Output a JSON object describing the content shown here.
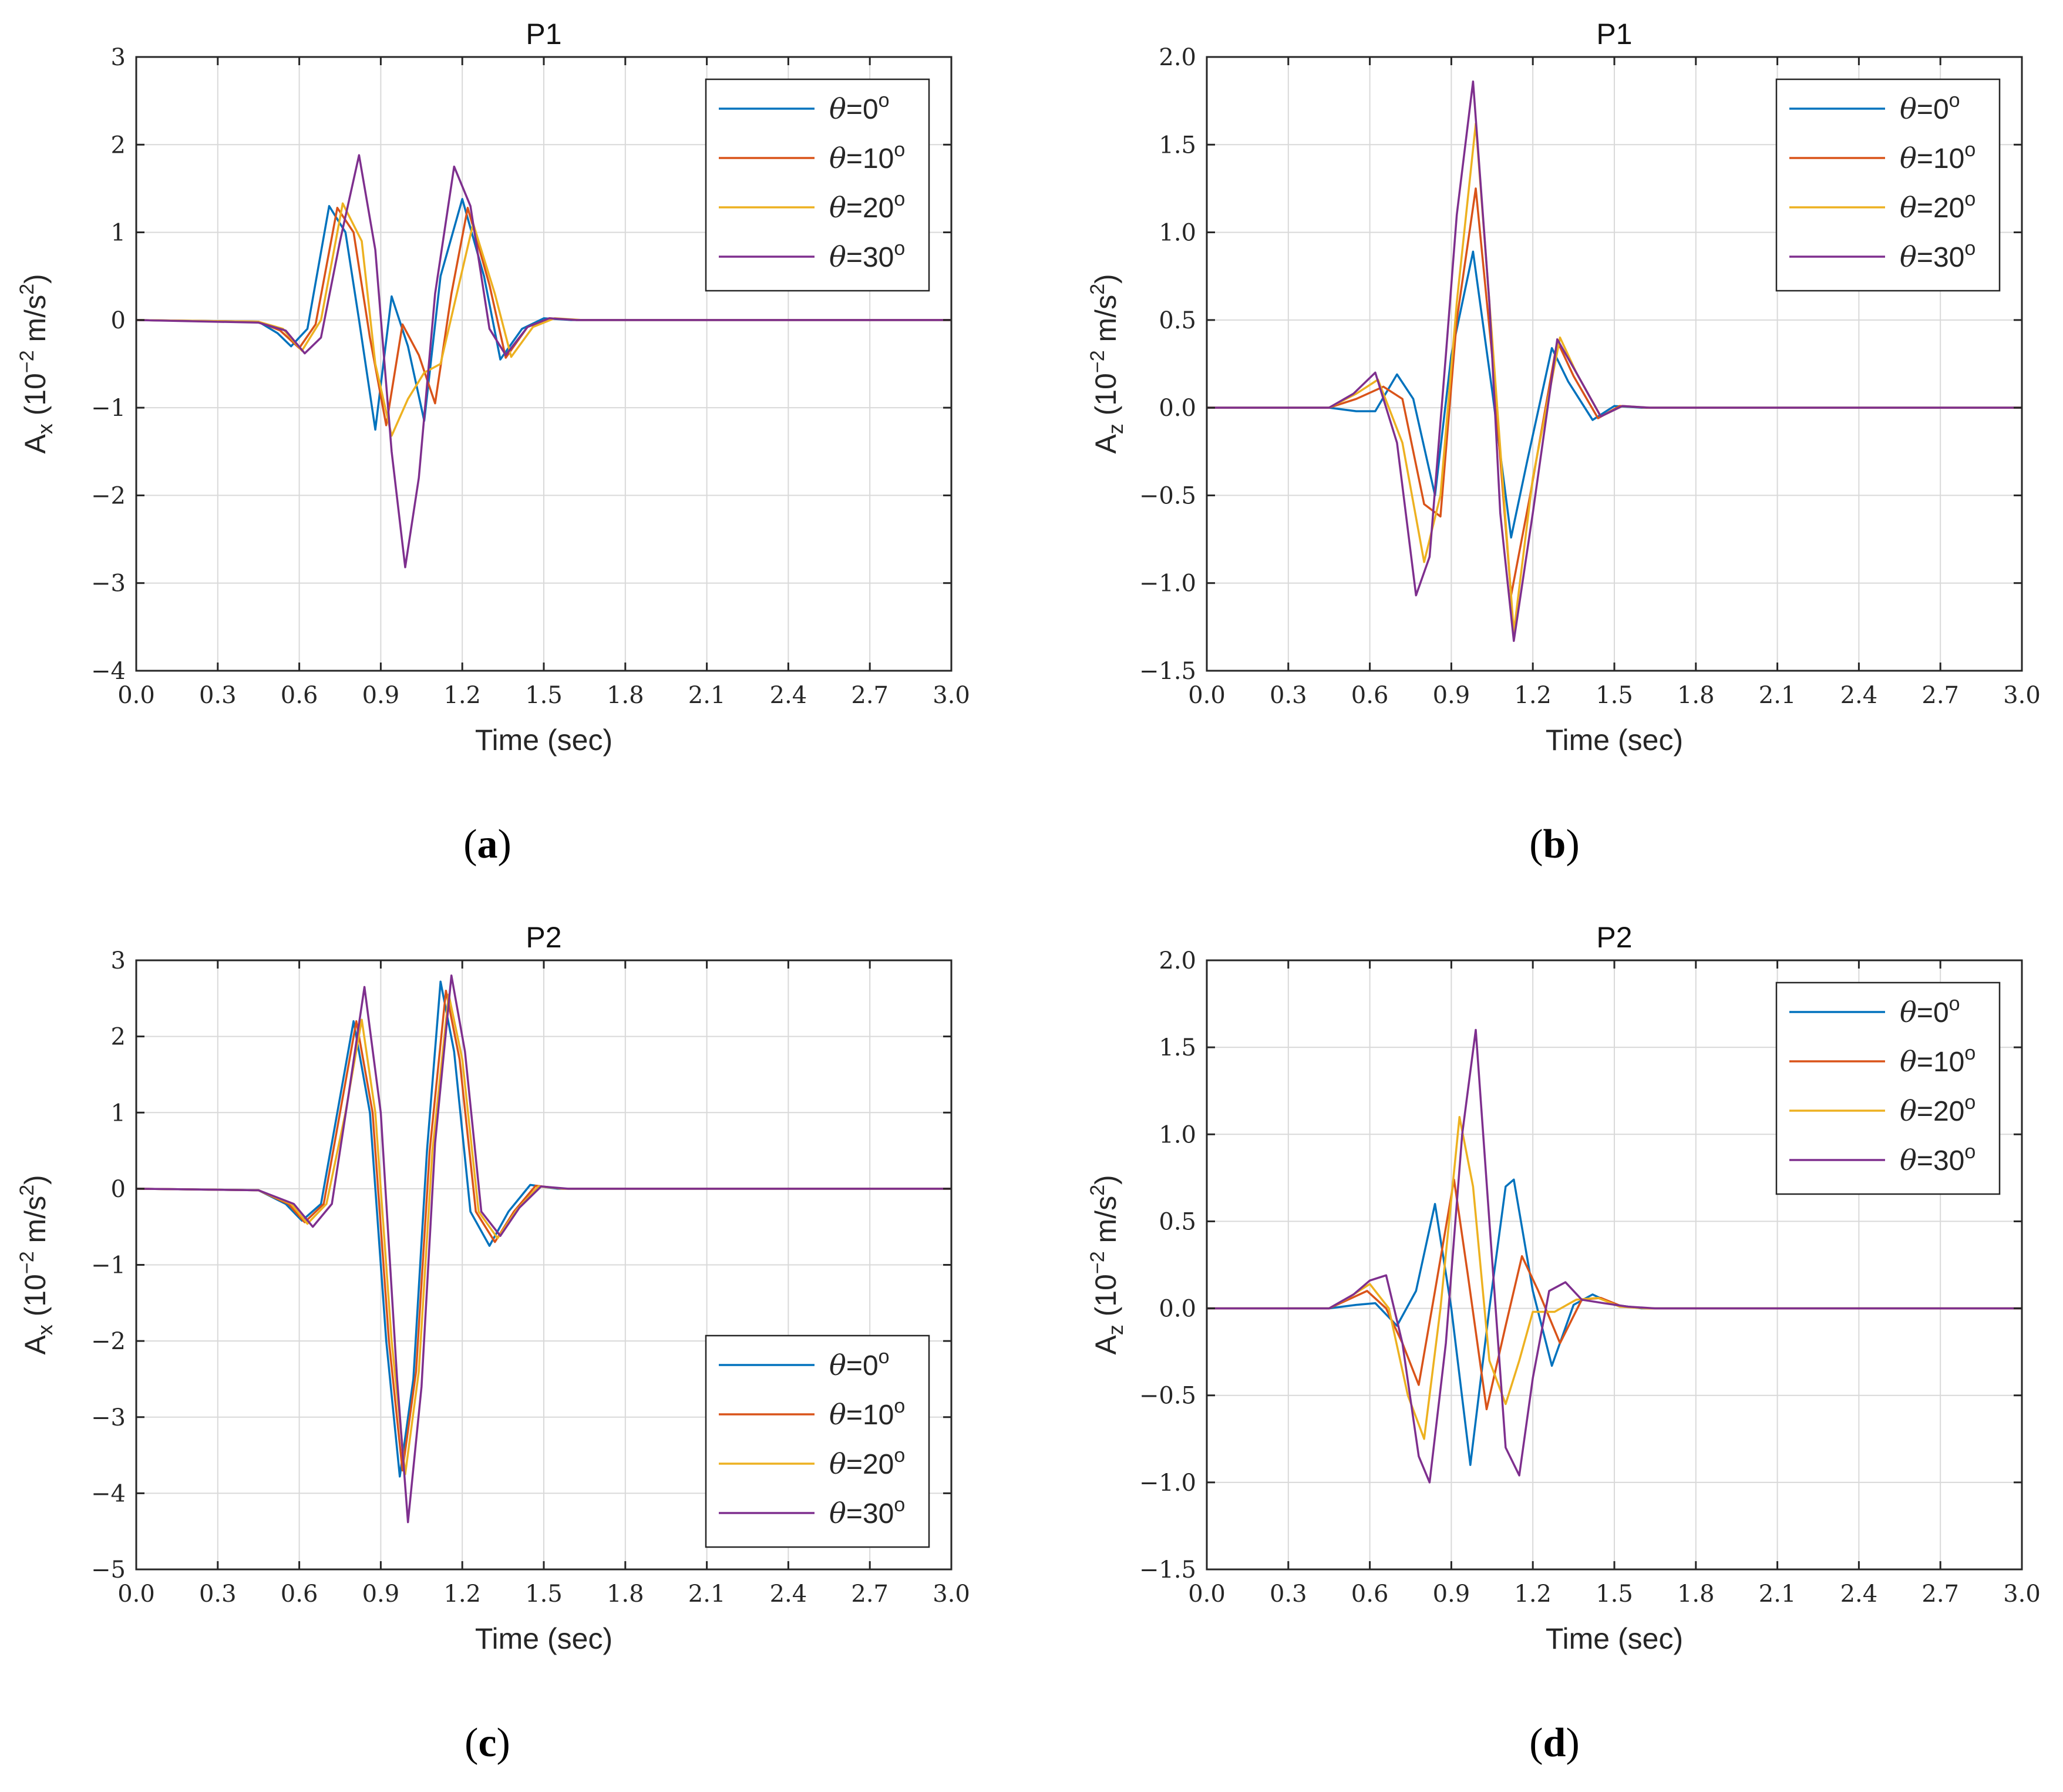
{
  "figure": {
    "theme": {
      "background": "#ffffff",
      "series_colors": [
        "#0072BD",
        "#D95319",
        "#EDB120",
        "#7E2F8E"
      ]
    }
  },
  "chart_data": [
    {
      "panel": "a",
      "caption_letter": "a",
      "type": "line",
      "title": "P1",
      "xlabel": "Time (sec)",
      "ylabel": {
        "main": "A",
        "sub": "x",
        "unit_prefix": " (10",
        "exponent": "−2",
        "unit_mid": " m/s",
        "unit_exp": "2",
        "unit_suffix": ")"
      },
      "xlim": [
        0,
        3
      ],
      "ylim": [
        -4,
        3
      ],
      "xticks": [
        0,
        0.3,
        0.6,
        0.9,
        1.2,
        1.5,
        1.8,
        2.1,
        2.4,
        2.7,
        3.0
      ],
      "xtick_labels": [
        "0.0",
        "0.3",
        "0.6",
        "0.9",
        "1.2",
        "1.5",
        "1.8",
        "2.1",
        "2.4",
        "2.7",
        "3.0"
      ],
      "yticks": [
        -4,
        -3,
        -2,
        -1,
        0,
        1,
        2,
        3
      ],
      "ytick_labels": [
        "−4",
        "−3",
        "−2",
        "−1",
        "0",
        "1",
        "2",
        "3"
      ],
      "grid": true,
      "legend_position": "top-right",
      "series": [
        {
          "name": "θ=0°",
          "theta": "0",
          "x": [
            0,
            0.45,
            0.52,
            0.57,
            0.63,
            0.71,
            0.77,
            0.82,
            0.88,
            0.94,
            1.0,
            1.06,
            1.12,
            1.2,
            1.28,
            1.34,
            1.42,
            1.5,
            1.6,
            3.0
          ],
          "y": [
            0,
            -0.02,
            -0.15,
            -0.3,
            -0.1,
            1.3,
            1.0,
            0.0,
            -1.25,
            0.27,
            -0.3,
            -1.15,
            0.5,
            1.38,
            0.5,
            -0.45,
            -0.1,
            0.02,
            0,
            0
          ]
        },
        {
          "name": "θ=10°",
          "theta": "10",
          "x": [
            0,
            0.45,
            0.53,
            0.6,
            0.66,
            0.74,
            0.8,
            0.86,
            0.92,
            0.98,
            1.04,
            1.1,
            1.16,
            1.22,
            1.3,
            1.36,
            1.44,
            1.52,
            1.62,
            3.0
          ],
          "y": [
            0,
            -0.02,
            -0.12,
            -0.32,
            -0.05,
            1.28,
            1.0,
            -0.2,
            -1.2,
            -0.05,
            -0.4,
            -0.95,
            0.3,
            1.28,
            0.4,
            -0.43,
            -0.08,
            0.02,
            0,
            0
          ]
        },
        {
          "name": "θ=20°",
          "theta": "20",
          "x": [
            0,
            0.45,
            0.54,
            0.61,
            0.68,
            0.76,
            0.83,
            0.88,
            0.94,
            1.0,
            1.06,
            1.12,
            1.18,
            1.24,
            1.32,
            1.38,
            1.46,
            1.54,
            1.64,
            3.0
          ],
          "y": [
            0,
            -0.02,
            -0.1,
            -0.35,
            0.0,
            1.33,
            0.9,
            -0.5,
            -1.32,
            -0.9,
            -0.6,
            -0.5,
            0.3,
            1.1,
            0.3,
            -0.42,
            -0.08,
            0.02,
            0,
            0
          ]
        },
        {
          "name": "θ=30°",
          "theta": "30",
          "x": [
            0,
            0.45,
            0.55,
            0.62,
            0.68,
            0.75,
            0.82,
            0.88,
            0.94,
            0.99,
            1.04,
            1.1,
            1.17,
            1.23,
            1.3,
            1.36,
            1.44,
            1.52,
            1.62,
            3.0
          ],
          "y": [
            0,
            -0.03,
            -0.12,
            -0.38,
            -0.2,
            0.9,
            1.88,
            0.8,
            -1.5,
            -2.82,
            -1.8,
            0.3,
            1.75,
            1.3,
            -0.1,
            -0.4,
            -0.08,
            0.02,
            0,
            0
          ]
        }
      ]
    },
    {
      "panel": "b",
      "caption_letter": "b",
      "type": "line",
      "title": "P1",
      "xlabel": "Time (sec)",
      "ylabel": {
        "main": "A",
        "sub": "z",
        "unit_prefix": " (10",
        "exponent": "−2",
        "unit_mid": " m/s",
        "unit_exp": "2",
        "unit_suffix": ")"
      },
      "xlim": [
        0,
        3
      ],
      "ylim": [
        -1.5,
        2.0
      ],
      "xticks": [
        0,
        0.3,
        0.6,
        0.9,
        1.2,
        1.5,
        1.8,
        2.1,
        2.4,
        2.7,
        3.0
      ],
      "xtick_labels": [
        "0.0",
        "0.3",
        "0.6",
        "0.9",
        "1.2",
        "1.5",
        "1.8",
        "2.1",
        "2.4",
        "2.7",
        "3.0"
      ],
      "yticks": [
        -1.5,
        -1.0,
        -0.5,
        0,
        0.5,
        1.0,
        1.5,
        2.0
      ],
      "ytick_labels": [
        "−1.5",
        "−1.0",
        "−0.5",
        "0.0",
        "0.5",
        "1.0",
        "1.5",
        "2.0"
      ],
      "grid": true,
      "legend_position": "top-right",
      "series": [
        {
          "name": "θ=0°",
          "theta": "0",
          "x": [
            0,
            0.45,
            0.55,
            0.62,
            0.7,
            0.76,
            0.84,
            0.9,
            0.98,
            1.05,
            1.12,
            1.18,
            1.27,
            1.33,
            1.42,
            1.5,
            1.6,
            3.0
          ],
          "y": [
            0,
            0,
            -0.02,
            -0.02,
            0.19,
            0.05,
            -0.5,
            0.3,
            0.89,
            0.1,
            -0.74,
            -0.3,
            0.34,
            0.15,
            -0.07,
            0.01,
            0,
            0
          ]
        },
        {
          "name": "θ=10°",
          "theta": "10",
          "x": [
            0,
            0.45,
            0.55,
            0.65,
            0.72,
            0.8,
            0.86,
            0.92,
            0.99,
            1.05,
            1.12,
            1.19,
            1.29,
            1.35,
            1.44,
            1.52,
            1.62,
            3.0
          ],
          "y": [
            0,
            0,
            0.05,
            0.12,
            0.05,
            -0.55,
            -0.62,
            0.5,
            1.25,
            0.3,
            -1.07,
            -0.5,
            0.38,
            0.18,
            -0.06,
            0.01,
            0,
            0
          ]
        },
        {
          "name": "θ=20°",
          "theta": "20",
          "x": [
            0,
            0.45,
            0.55,
            0.63,
            0.72,
            0.8,
            0.86,
            0.92,
            0.99,
            1.05,
            1.13,
            1.2,
            1.3,
            1.36,
            1.45,
            1.53,
            1.63,
            3.0
          ],
          "y": [
            0,
            0,
            0.08,
            0.16,
            -0.2,
            -0.88,
            -0.5,
            0.6,
            1.62,
            0.4,
            -1.28,
            -0.4,
            0.4,
            0.2,
            -0.05,
            0.01,
            0,
            0
          ]
        },
        {
          "name": "θ=30°",
          "theta": "30",
          "x": [
            0,
            0.45,
            0.54,
            0.62,
            0.7,
            0.77,
            0.82,
            0.88,
            0.92,
            0.98,
            1.04,
            1.08,
            1.13,
            1.2,
            1.29,
            1.36,
            1.45,
            1.53,
            1.63,
            3.0
          ],
          "y": [
            0,
            0,
            0.08,
            0.2,
            -0.2,
            -1.07,
            -0.85,
            0.3,
            1.1,
            1.86,
            0.6,
            -0.6,
            -1.33,
            -0.6,
            0.39,
            0.2,
            -0.05,
            0.01,
            0,
            0
          ]
        }
      ]
    },
    {
      "panel": "c",
      "caption_letter": "c",
      "type": "line",
      "title": "P2",
      "xlabel": "Time (sec)",
      "ylabel": {
        "main": "A",
        "sub": "x",
        "unit_prefix": " (10",
        "exponent": "−2",
        "unit_mid": " m/s",
        "unit_exp": "2",
        "unit_suffix": ")"
      },
      "xlim": [
        0,
        3
      ],
      "ylim": [
        -5,
        3
      ],
      "xticks": [
        0,
        0.3,
        0.6,
        0.9,
        1.2,
        1.5,
        1.8,
        2.1,
        2.4,
        2.7,
        3.0
      ],
      "xtick_labels": [
        "0.0",
        "0.3",
        "0.6",
        "0.9",
        "1.2",
        "1.5",
        "1.8",
        "2.1",
        "2.4",
        "2.7",
        "3.0"
      ],
      "yticks": [
        -5,
        -4,
        -3,
        -2,
        -1,
        0,
        1,
        2,
        3
      ],
      "ytick_labels": [
        "−5",
        "−4",
        "−3",
        "−2",
        "−1",
        "0",
        "1",
        "2",
        "3"
      ],
      "grid": true,
      "legend_position": "bottom-right",
      "series": [
        {
          "name": "θ=0°",
          "theta": "0",
          "x": [
            0,
            0.45,
            0.55,
            0.61,
            0.68,
            0.74,
            0.8,
            0.86,
            0.92,
            0.97,
            1.02,
            1.07,
            1.12,
            1.17,
            1.23,
            1.3,
            1.37,
            1.45,
            1.55,
            3.0
          ],
          "y": [
            0,
            -0.02,
            -0.2,
            -0.42,
            -0.2,
            1.0,
            2.2,
            1.0,
            -2.0,
            -3.78,
            -2.5,
            0.5,
            2.72,
            1.8,
            -0.3,
            -0.75,
            -0.3,
            0.05,
            0,
            0
          ]
        },
        {
          "name": "θ=10°",
          "theta": "10",
          "x": [
            0,
            0.45,
            0.56,
            0.62,
            0.69,
            0.75,
            0.81,
            0.87,
            0.93,
            0.98,
            1.03,
            1.08,
            1.14,
            1.19,
            1.25,
            1.32,
            1.39,
            1.47,
            1.57,
            3.0
          ],
          "y": [
            0,
            -0.02,
            -0.2,
            -0.44,
            -0.2,
            1.0,
            2.2,
            1.0,
            -2.0,
            -3.7,
            -2.4,
            0.5,
            2.6,
            1.7,
            -0.3,
            -0.7,
            -0.3,
            0.04,
            0,
            0
          ]
        },
        {
          "name": "θ=20°",
          "theta": "20",
          "x": [
            0,
            0.45,
            0.57,
            0.63,
            0.7,
            0.77,
            0.83,
            0.88,
            0.94,
            0.99,
            1.04,
            1.09,
            1.15,
            1.2,
            1.26,
            1.33,
            1.4,
            1.48,
            1.58,
            3.0
          ],
          "y": [
            0,
            -0.02,
            -0.2,
            -0.46,
            -0.2,
            1.0,
            2.22,
            1.0,
            -2.0,
            -3.75,
            -2.4,
            0.5,
            2.55,
            1.7,
            -0.3,
            -0.65,
            -0.28,
            0.03,
            0,
            0
          ]
        },
        {
          "name": "θ=30°",
          "theta": "30",
          "x": [
            0,
            0.45,
            0.58,
            0.65,
            0.72,
            0.78,
            0.84,
            0.9,
            0.96,
            1.0,
            1.05,
            1.1,
            1.16,
            1.21,
            1.27,
            1.34,
            1.41,
            1.49,
            1.59,
            3.0
          ],
          "y": [
            0,
            -0.02,
            -0.2,
            -0.5,
            -0.2,
            1.2,
            2.65,
            1.0,
            -2.5,
            -4.38,
            -2.6,
            0.6,
            2.8,
            1.8,
            -0.3,
            -0.62,
            -0.25,
            0.03,
            0,
            0
          ]
        }
      ]
    },
    {
      "panel": "d",
      "caption_letter": "d",
      "type": "line",
      "title": "P2",
      "xlabel": "Time (sec)",
      "ylabel": {
        "main": "A",
        "sub": "z",
        "unit_prefix": " (10",
        "exponent": "−2",
        "unit_mid": " m/s",
        "unit_exp": "2",
        "unit_suffix": ")"
      },
      "xlim": [
        0,
        3
      ],
      "ylim": [
        -1.5,
        2.0
      ],
      "xticks": [
        0,
        0.3,
        0.6,
        0.9,
        1.2,
        1.5,
        1.8,
        2.1,
        2.4,
        2.7,
        3.0
      ],
      "xtick_labels": [
        "0.0",
        "0.3",
        "0.6",
        "0.9",
        "1.2",
        "1.5",
        "1.8",
        "2.1",
        "2.4",
        "2.7",
        "3.0"
      ],
      "yticks": [
        -1.5,
        -1.0,
        -0.5,
        0,
        0.5,
        1.0,
        1.5,
        2.0
      ],
      "ytick_labels": [
        "−1.5",
        "−1.0",
        "−0.5",
        "0.0",
        "0.5",
        "1.0",
        "1.5",
        "2.0"
      ],
      "grid": true,
      "legend_position": "top-right",
      "series": [
        {
          "name": "θ=0°",
          "theta": "0",
          "x": [
            0,
            0.45,
            0.55,
            0.62,
            0.7,
            0.77,
            0.84,
            0.9,
            0.97,
            1.04,
            1.1,
            1.13,
            1.2,
            1.27,
            1.35,
            1.42,
            1.5,
            1.6,
            3.0
          ],
          "y": [
            0,
            0,
            0.02,
            0.03,
            -0.1,
            0.1,
            0.6,
            0.0,
            -0.9,
            0.0,
            0.7,
            0.74,
            0.1,
            -0.33,
            0.02,
            0.08,
            0.02,
            0,
            0
          ]
        },
        {
          "name": "θ=10°",
          "theta": "10",
          "x": [
            0,
            0.45,
            0.52,
            0.59,
            0.66,
            0.72,
            0.78,
            0.84,
            0.91,
            0.96,
            1.03,
            1.1,
            1.16,
            1.22,
            1.3,
            1.38,
            1.45,
            1.53,
            1.63,
            3.0
          ],
          "y": [
            0,
            0,
            0.05,
            0.1,
            0.0,
            -0.2,
            -0.44,
            0.1,
            0.74,
            0.2,
            -0.58,
            -0.1,
            0.3,
            0.1,
            -0.2,
            0.05,
            0.06,
            0.01,
            0,
            0
          ]
        },
        {
          "name": "θ=20°",
          "theta": "20",
          "x": [
            0,
            0.45,
            0.52,
            0.6,
            0.67,
            0.74,
            0.8,
            0.86,
            0.93,
            0.98,
            1.04,
            1.1,
            1.15,
            1.2,
            1.28,
            1.36,
            1.44,
            1.52,
            1.62,
            3.0
          ],
          "y": [
            0,
            0,
            0.06,
            0.14,
            0.0,
            -0.5,
            -0.75,
            0.0,
            1.1,
            0.7,
            -0.3,
            -0.55,
            -0.3,
            -0.02,
            -0.02,
            0.05,
            0.06,
            0.01,
            0,
            0
          ]
        },
        {
          "name": "θ=30°",
          "theta": "30",
          "x": [
            0,
            0.45,
            0.54,
            0.6,
            0.66,
            0.72,
            0.78,
            0.82,
            0.88,
            0.94,
            0.99,
            1.04,
            1.1,
            1.15,
            1.2,
            1.26,
            1.32,
            1.38,
            1.46,
            1.55,
            1.65,
            3.0
          ],
          "y": [
            0,
            0,
            0.08,
            0.16,
            0.19,
            -0.2,
            -0.85,
            -1.0,
            -0.2,
            1.0,
            1.6,
            0.5,
            -0.8,
            -0.96,
            -0.4,
            0.1,
            0.15,
            0.05,
            0.03,
            0.01,
            0,
            0
          ]
        }
      ]
    }
  ]
}
